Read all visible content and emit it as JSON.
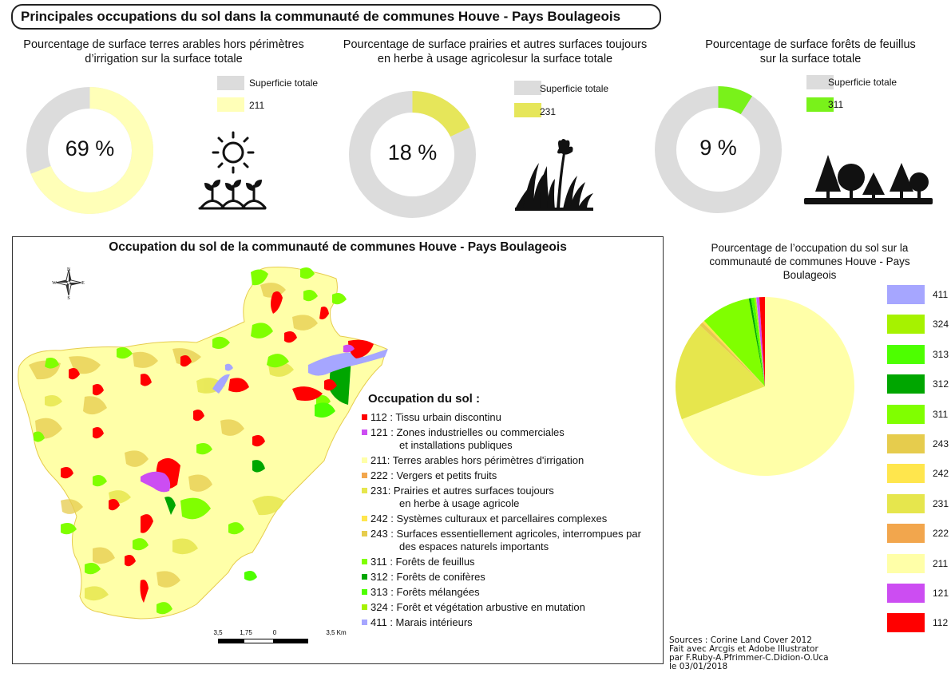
{
  "title": "Principales occupations du sol dans la communauté de communes Houve - Pays Boulageois",
  "donuts": [
    {
      "title_line1": "Pourcentage de surface terres arables hors périmètres",
      "title_line2": "d’irrigation sur la surface totale",
      "label": "69 %",
      "value": 69,
      "legend_total": "Superficie totale",
      "legend_code": "211",
      "color": "#ffffb8",
      "total_color": "#dcdcdc"
    },
    {
      "title_line1": "Pourcentage de surface prairies et autres surfaces toujours",
      "title_line2": "en herbe à usage agricolesur la surface totale",
      "label": "18 %",
      "value": 18,
      "legend_total": "Superficie totale",
      "legend_code": "231",
      "color": "#e6e65a",
      "total_color": "#dcdcdc"
    },
    {
      "title_line1": "Pourcentage de surface forêts de feuillus",
      "title_line2": "sur la surface totale",
      "label": "9 %",
      "value": 9,
      "legend_total": "Superficie totale",
      "legend_code": "311",
      "color": "#79f21a",
      "total_color": "#dcdcdc"
    }
  ],
  "map": {
    "title": "Occupation du sol de la communauté de communes Houve - Pays Boulageois",
    "compass": {
      "n": "N",
      "s": "S",
      "e": "E",
      "w": "W"
    },
    "legend_title": "Occupation du sol :",
    "legend": [
      {
        "lines": [
          "112 : Tissu urbain discontinu"
        ],
        "color": "#ff0000"
      },
      {
        "lines": [
          "121 : Zones industrielles ou commerciales",
          "et installations publiques"
        ],
        "color": "#cc4df2"
      },
      {
        "lines": [
          "211: Terres arables hors périmètres d'irrigation"
        ],
        "color": "#ffffa8"
      },
      {
        "lines": [
          "222 : Vergers et petits fruits"
        ],
        "color": "#f2a64d"
      },
      {
        "lines": [
          "231: Prairies et autres surfaces toujours",
          "en herbe à usage agricole"
        ],
        "color": "#e6e64d"
      },
      {
        "lines": [
          "242 : Systèmes culturaux et parcellaires complexes"
        ],
        "color": "#ffe64d"
      },
      {
        "lines": [
          "243 : Surfaces essentiellement agricoles, interrompues par",
          "des espaces naturels importants"
        ],
        "color": "#e6cc4d"
      },
      {
        "lines": [
          "311 : Forêts de feuillus"
        ],
        "color": "#80ff00"
      },
      {
        "lines": [
          "312 : Forêts de conifères"
        ],
        "color": "#00a600"
      },
      {
        "lines": [
          "313 : Forêts mélangées"
        ],
        "color": "#4dff00"
      },
      {
        "lines": [
          "324 : Forêt et végétation arbustive en mutation"
        ],
        "color": "#a6f200"
      },
      {
        "lines": [
          "411 : Marais intérieurs"
        ],
        "color": "#a6a6ff"
      }
    ],
    "scale": {
      "labels": [
        "3,5",
        "1,75",
        "0",
        "3,5 Km"
      ]
    }
  },
  "pie": {
    "title_line1": "Pourcentage de l’occupation du sol sur la",
    "title_line2": "communauté de communes Houve - Pays",
    "title_line3": "Boulageois",
    "legend": [
      {
        "code": "411",
        "color": "#a6a6ff"
      },
      {
        "code": "324",
        "color": "#a6f200"
      },
      {
        "code": "313",
        "color": "#4dff00"
      },
      {
        "code": "312",
        "color": "#00a600"
      },
      {
        "code": "311",
        "color": "#80ff00"
      },
      {
        "code": "243",
        "color": "#e6cc4d"
      },
      {
        "code": "242",
        "color": "#ffe64d"
      },
      {
        "code": "231",
        "color": "#e6e64d"
      },
      {
        "code": "222",
        "color": "#f2a64d"
      },
      {
        "code": "211",
        "color": "#ffffa8"
      },
      {
        "code": "121",
        "color": "#cc4df2"
      },
      {
        "code": "112",
        "color": "#ff0000"
      }
    ]
  },
  "chart_data": [
    {
      "type": "pie",
      "title": "Pourcentage de surface terres arables hors périmètres d’irrigation sur la surface totale",
      "categories": [
        "211",
        "Superficie totale"
      ],
      "values": [
        69,
        31
      ]
    },
    {
      "type": "pie",
      "title": "Pourcentage de surface prairies et autres surfaces toujours en herbe à usage agricolesur la surface totale",
      "categories": [
        "231",
        "Superficie totale"
      ],
      "values": [
        18,
        82
      ]
    },
    {
      "type": "pie",
      "title": "Pourcentage de surface forêts de feuillus sur la surface totale",
      "categories": [
        "311",
        "Superficie totale"
      ],
      "values": [
        9,
        91
      ]
    },
    {
      "type": "pie",
      "title": "Pourcentage de l’occupation du sol sur la communauté de communes Houve - Pays Boulageois",
      "categories": [
        "211",
        "231",
        "243",
        "222",
        "242",
        "311",
        "312",
        "313",
        "324",
        "411",
        "121",
        "112"
      ],
      "values": [
        69.0,
        18.0,
        0.6,
        0.1,
        0.4,
        9.0,
        0.4,
        0.6,
        0.3,
        0.1,
        0.5,
        1.0
      ],
      "colors": [
        "#ffffa8",
        "#e6e64d",
        "#e6cc4d",
        "#f2a64d",
        "#ffe64d",
        "#80ff00",
        "#00a600",
        "#4dff00",
        "#a6f200",
        "#a6a6ff",
        "#cc4df2",
        "#ff0000"
      ]
    }
  ],
  "sources": {
    "line1": "Sources : Corine Land Cover 2012",
    "line2": "Fait avec Arcgis et Adobe Illustrator",
    "line3": "par F.Ruby-A.Pfrimmer-C.Didion-O.Uca",
    "line4": "le 03/01/2018"
  }
}
